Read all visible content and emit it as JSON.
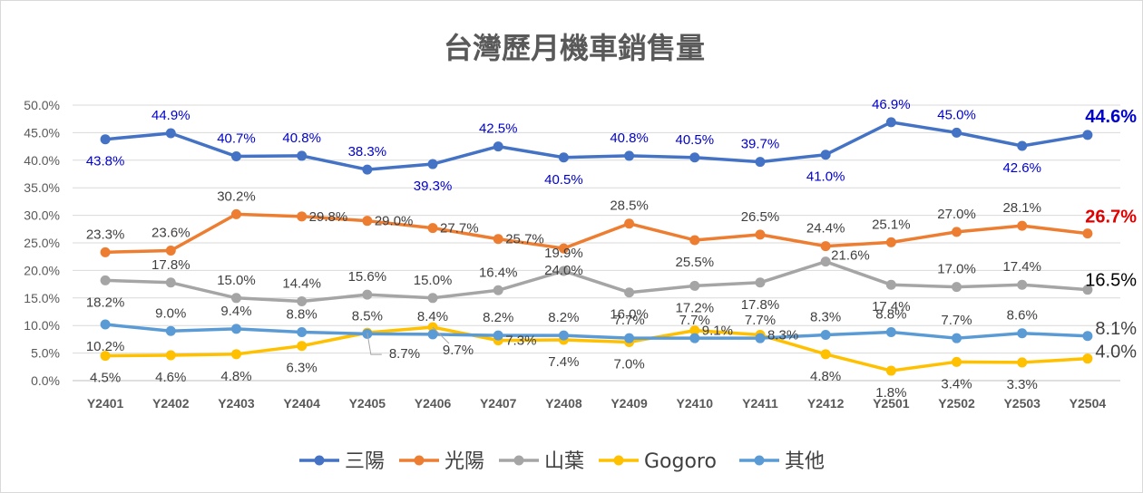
{
  "chart_data": {
    "type": "line",
    "title": "台灣歷月機車銷售量",
    "xlabel": "",
    "ylabel": "",
    "categories": [
      "Y2401",
      "Y2402",
      "Y2403",
      "Y2404",
      "Y2405",
      "Y2406",
      "Y2407",
      "Y2408",
      "Y2409",
      "Y2410",
      "Y2411",
      "Y2412",
      "Y2501",
      "Y2502",
      "Y2503",
      "Y2504"
    ],
    "ylim": [
      0,
      50
    ],
    "yticks": [
      "0.0%",
      "5.0%",
      "10.0%",
      "15.0%",
      "20.0%",
      "25.0%",
      "30.0%",
      "35.0%",
      "40.0%",
      "45.0%",
      "50.0%"
    ],
    "grid": true,
    "legend_position": "bottom",
    "series": [
      {
        "name": "三陽",
        "color": "#4472C4",
        "label_color": "#0000CC",
        "values": [
          43.8,
          44.9,
          40.7,
          40.8,
          38.3,
          39.3,
          42.5,
          40.5,
          40.8,
          40.5,
          39.7,
          41.0,
          46.9,
          45.0,
          42.6,
          44.6
        ],
        "labels": [
          "43.8%",
          "44.9%",
          "40.7%",
          "40.8%",
          "38.3%",
          "39.3%",
          "42.5%",
          "40.5%",
          "40.8%",
          "40.5%",
          "39.7%",
          "41.0%",
          "46.9%",
          "45.0%",
          "42.6%",
          "44.6%"
        ],
        "last_label_color": "#0000CC"
      },
      {
        "name": "光陽",
        "color": "#ED7D31",
        "label_color": "#404040",
        "values": [
          23.3,
          23.6,
          30.2,
          29.8,
          29.0,
          27.7,
          25.7,
          24.0,
          28.5,
          25.5,
          26.5,
          24.4,
          25.1,
          27.0,
          28.1,
          26.7
        ],
        "labels": [
          "23.3%",
          "23.6%",
          "30.2%",
          "29.8%",
          "29.0%",
          "27.7%",
          "25.7%",
          "24.0%",
          "28.5%",
          "25.5%",
          "26.5%",
          "24.4%",
          "25.1%",
          "27.0%",
          "28.1%",
          "26.7%"
        ],
        "last_label_color": "#E00000"
      },
      {
        "name": "山葉",
        "color": "#A5A5A5",
        "label_color": "#404040",
        "values": [
          18.2,
          17.8,
          15.0,
          14.4,
          15.6,
          15.0,
          16.4,
          19.9,
          16.0,
          17.2,
          17.8,
          21.6,
          17.4,
          17.0,
          17.4,
          16.5
        ],
        "labels": [
          "18.2%",
          "17.8%",
          "15.0%",
          "14.4%",
          "15.6%",
          "15.0%",
          "16.4%",
          "19.9%",
          "16.0%",
          "17.2%",
          "17.8%",
          "21.6%",
          "17.4%",
          "17.0%",
          "17.4%",
          "16.5%"
        ],
        "last_label_color": "#000000"
      },
      {
        "name": "Gogoro",
        "color": "#FFC000",
        "label_color": "#404040",
        "values": [
          4.5,
          4.6,
          4.8,
          6.3,
          8.7,
          9.7,
          7.3,
          7.4,
          7.0,
          9.1,
          8.3,
          4.8,
          1.8,
          3.4,
          3.3,
          4.0
        ],
        "labels": [
          "4.5%",
          "4.6%",
          "4.8%",
          "6.3%",
          "8.7%",
          "9.7%",
          "7.3%",
          "7.4%",
          "7.0%",
          "9.1%",
          "8.3%",
          "4.8%",
          "1.8%",
          "3.4%",
          "3.3%",
          "4.0%"
        ],
        "last_label_color": "#404040"
      },
      {
        "name": "其他",
        "color": "#5B9BD5",
        "label_color": "#404040",
        "values": [
          10.2,
          9.0,
          9.4,
          8.8,
          8.5,
          8.4,
          8.2,
          8.2,
          7.7,
          7.7,
          7.7,
          8.3,
          8.8,
          7.7,
          8.6,
          8.1
        ],
        "labels": [
          "10.2%",
          "9.0%",
          "9.4%",
          "8.8%",
          "8.5%",
          "8.4%",
          "8.2%",
          "8.2%",
          "7.7%",
          "7.7%",
          "7.7%",
          "8.3%",
          "8.8%",
          "7.7%",
          "8.6%",
          "8.1%"
        ],
        "last_label_color": "#404040"
      }
    ]
  }
}
